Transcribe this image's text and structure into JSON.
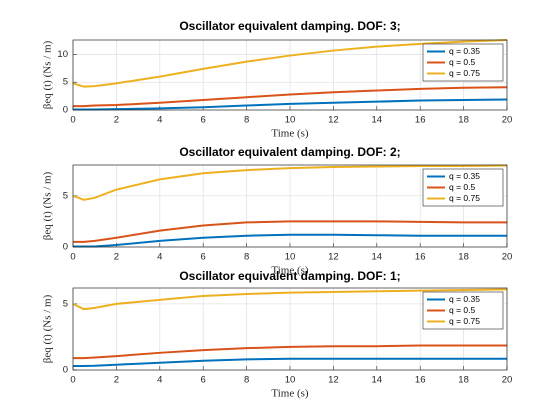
{
  "chart_data": [
    {
      "type": "line",
      "title": "Oscillator equivalent damping. DOF: 3;",
      "xlabel": "Time (s)",
      "ylabel": "βeq (t)  (Ns / m)",
      "x": [
        0,
        0.5,
        1,
        2,
        4,
        6,
        8,
        10,
        12,
        14,
        16,
        18,
        20
      ],
      "xlim": [
        0,
        20
      ],
      "xticks": [
        0,
        2,
        4,
        6,
        8,
        10,
        12,
        14,
        16,
        18,
        20
      ],
      "ylim": [
        0,
        12.6
      ],
      "yticks": [
        0,
        5,
        10
      ],
      "grid": true,
      "legend": "northeast",
      "series": [
        {
          "name": "q = 0.35",
          "color": "#0072bd",
          "values": [
            0.1,
            0.1,
            0.1,
            0.15,
            0.3,
            0.5,
            0.8,
            1.1,
            1.3,
            1.5,
            1.7,
            1.8,
            1.9
          ]
        },
        {
          "name": "q = 0.5",
          "color": "#d95319",
          "values": [
            0.7,
            0.7,
            0.8,
            0.9,
            1.3,
            1.8,
            2.3,
            2.8,
            3.2,
            3.5,
            3.8,
            4.0,
            4.1
          ]
        },
        {
          "name": "q = 0.75",
          "color": "#edb120",
          "values": [
            4.8,
            4.2,
            4.3,
            4.8,
            6.0,
            7.4,
            8.7,
            9.8,
            10.7,
            11.4,
            11.9,
            12.3,
            12.6
          ]
        }
      ]
    },
    {
      "type": "line",
      "title": "Oscillator equivalent damping. DOF: 2;",
      "xlabel": "Time (s)",
      "ylabel": "βeq (t)  (Ns / m)",
      "x": [
        0,
        0.5,
        1,
        2,
        4,
        6,
        8,
        10,
        12,
        14,
        16,
        18,
        20
      ],
      "xlim": [
        0,
        20
      ],
      "xticks": [
        0,
        2,
        4,
        6,
        8,
        10,
        12,
        14,
        16,
        18,
        20
      ],
      "ylim": [
        0,
        8
      ],
      "yticks": [
        0,
        5
      ],
      "grid": true,
      "legend": "northeast",
      "series": [
        {
          "name": "q = 0.35",
          "color": "#0072bd",
          "values": [
            0.05,
            0.05,
            0.05,
            0.2,
            0.6,
            0.9,
            1.1,
            1.2,
            1.2,
            1.15,
            1.1,
            1.1,
            1.1
          ]
        },
        {
          "name": "q = 0.5",
          "color": "#d95319",
          "values": [
            0.5,
            0.5,
            0.6,
            0.9,
            1.6,
            2.1,
            2.4,
            2.5,
            2.5,
            2.5,
            2.45,
            2.4,
            2.4
          ]
        },
        {
          "name": "q = 0.75",
          "color": "#edb120",
          "values": [
            5.0,
            4.6,
            4.8,
            5.6,
            6.6,
            7.2,
            7.5,
            7.7,
            7.8,
            7.85,
            7.9,
            7.9,
            7.95
          ]
        }
      ]
    },
    {
      "type": "line",
      "title": "Oscillator equivalent damping. DOF: 1;",
      "xlabel": "Time (s)",
      "ylabel": "βeq (t)  (Ns / m)",
      "x": [
        0,
        0.5,
        1,
        2,
        4,
        6,
        8,
        10,
        12,
        14,
        16,
        18,
        20
      ],
      "xlim": [
        0,
        20
      ],
      "xticks": [
        0,
        2,
        4,
        6,
        8,
        10,
        12,
        14,
        16,
        18,
        20
      ],
      "ylim": [
        0,
        6.2
      ],
      "yticks": [
        0,
        5
      ],
      "grid": true,
      "legend": "northeast",
      "series": [
        {
          "name": "q = 0.35",
          "color": "#0072bd",
          "values": [
            0.3,
            0.3,
            0.32,
            0.4,
            0.55,
            0.7,
            0.8,
            0.85,
            0.85,
            0.85,
            0.85,
            0.85,
            0.85
          ]
        },
        {
          "name": "q = 0.5",
          "color": "#d95319",
          "values": [
            0.9,
            0.9,
            0.95,
            1.05,
            1.3,
            1.5,
            1.65,
            1.75,
            1.8,
            1.8,
            1.85,
            1.85,
            1.85
          ]
        },
        {
          "name": "q = 0.75",
          "color": "#edb120",
          "values": [
            5.0,
            4.6,
            4.7,
            5.0,
            5.3,
            5.6,
            5.75,
            5.85,
            5.9,
            5.95,
            6.0,
            6.05,
            6.1
          ]
        }
      ]
    }
  ]
}
